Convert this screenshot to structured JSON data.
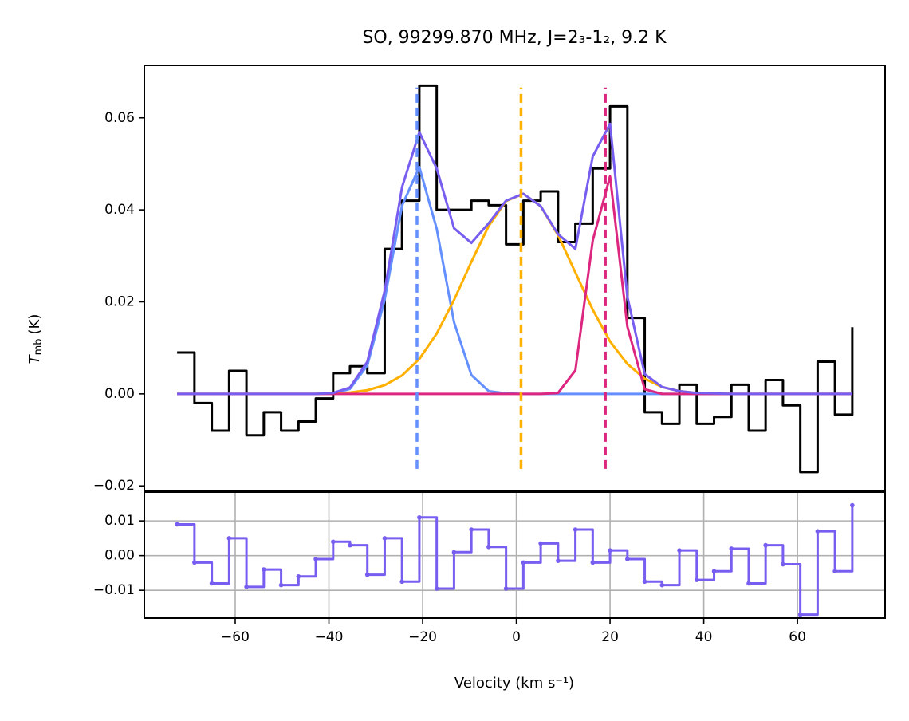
{
  "chart_data": [
    {
      "type": "line",
      "title": "SO, 99299.870 MHz, J=2₃-1₂, 9.2 K",
      "ylabel": {
        "symbol": "T",
        "subscript": "mb",
        "unit": "(K)"
      },
      "xlim": [
        -79.4,
        78.7
      ],
      "ylim": [
        -0.021,
        0.0714
      ],
      "yticks": [
        {
          "value": -0.02,
          "label": "−0.02"
        },
        {
          "value": 0,
          "label": "0.00"
        },
        {
          "value": 0.02,
          "label": "0.02"
        },
        {
          "value": 0.04,
          "label": "0.04"
        },
        {
          "value": 0.06,
          "label": "0.06"
        }
      ],
      "grid": false,
      "x": [
        -72.4,
        -68.7,
        -65.0,
        -61.3,
        -57.6,
        -53.9,
        -50.2,
        -46.5,
        -42.8,
        -39.1,
        -35.5,
        -31.8,
        -28.1,
        -24.4,
        -20.7,
        -17.0,
        -13.3,
        -9.6,
        -5.9,
        -2.2,
        1.5,
        5.2,
        8.9,
        12.6,
        16.3,
        20.0,
        23.7,
        27.4,
        31.1,
        34.8,
        38.5,
        42.2,
        45.9,
        49.6,
        53.2,
        56.9,
        60.6,
        64.3,
        68.0,
        71.7
      ],
      "series": [
        {
          "color": "#000000",
          "drawstyle": "steps-post",
          "values": [
            0.009,
            -0.002,
            -0.008,
            0.005,
            -0.009,
            -0.004,
            -0.008,
            -0.006,
            -0.001,
            0.0045,
            0.006,
            0.0045,
            0.0315,
            0.042,
            0.067,
            0.04,
            0.04,
            0.042,
            0.041,
            0.0325,
            0.042,
            0.044,
            0.033,
            0.037,
            0.049,
            0.0625,
            0.0165,
            -0.004,
            -0.0065,
            0.002,
            -0.0065,
            -0.005,
            0.002,
            -0.008,
            0.003,
            -0.0025,
            -0.017,
            0.007,
            -0.0045,
            0.0145
          ]
        },
        {
          "color": "#648fff",
          "drawstyle": "default",
          "values": [
            0,
            0,
            0,
            0,
            0,
            0,
            0,
            0,
            0,
            0.0001,
            0.0011,
            0.0062,
            0.0205,
            0.0409,
            0.0493,
            0.0359,
            0.0156,
            0.0041,
            0.0006,
            0.0001,
            0,
            0,
            0,
            0,
            0,
            0,
            0,
            0,
            0,
            0,
            0,
            0,
            0,
            0,
            0,
            0,
            0,
            0,
            0,
            0
          ]
        },
        {
          "color": "#ffb000",
          "drawstyle": "default",
          "values": [
            0,
            0,
            0,
            0,
            0,
            0,
            0,
            0,
            0,
            0.0001,
            0.0003,
            0.0008,
            0.0019,
            0.004,
            0.0076,
            0.0131,
            0.0204,
            0.0287,
            0.0365,
            0.0419,
            0.0435,
            0.0408,
            0.0345,
            0.0264,
            0.0183,
            0.0114,
            0.0065,
            0.0033,
            0.0015,
            0.0006,
            0.0002,
            0.0001,
            0,
            0,
            0,
            0,
            0,
            0,
            0,
            0
          ]
        },
        {
          "color": "#dc267f",
          "drawstyle": "default",
          "values": [
            0,
            0,
            0,
            0,
            0,
            0,
            0,
            0,
            0,
            0,
            0,
            0,
            0,
            0,
            0,
            0,
            0,
            0,
            0,
            0,
            0,
            0,
            0.0002,
            0.0051,
            0.0333,
            0.0473,
            0.0146,
            0.001,
            0,
            0,
            0,
            0,
            0,
            0,
            0,
            0,
            0,
            0,
            0,
            0
          ]
        },
        {
          "color": "#785ef0",
          "drawstyle": "default",
          "values": [
            0,
            0,
            0,
            0,
            0,
            0,
            0,
            0,
            0,
            0.0002,
            0.0014,
            0.007,
            0.0224,
            0.0449,
            0.0569,
            0.049,
            0.036,
            0.0328,
            0.0371,
            0.042,
            0.0435,
            0.0408,
            0.0347,
            0.0315,
            0.0516,
            0.0587,
            0.0211,
            0.0043,
            0.0015,
            0.0006,
            0.0002,
            0.0001,
            0,
            0,
            0,
            0,
            0,
            0,
            0,
            0
          ]
        }
      ],
      "vlines": [
        {
          "x": -21.2,
          "color": "#648fff"
        },
        {
          "x": 1.0,
          "color": "#ffb000"
        },
        {
          "x": 19.0,
          "color": "#dc267f"
        }
      ],
      "vline_range": [
        -0.0163,
        0.0666
      ]
    },
    {
      "type": "line",
      "xlabel": "Velocity (km s⁻¹)",
      "xlim": [
        -79.4,
        78.7
      ],
      "ylim": [
        -0.018,
        0.0183
      ],
      "xticks": [
        {
          "value": -60,
          "label": "−60"
        },
        {
          "value": -40,
          "label": "−40"
        },
        {
          "value": -20,
          "label": "−20"
        },
        0,
        20,
        40,
        60
      ],
      "yticks": [
        {
          "value": -0.01,
          "label": "−0.01"
        },
        {
          "value": 0,
          "label": "0.00"
        },
        {
          "value": 0.01,
          "label": "0.01"
        }
      ],
      "grid": true,
      "x": [
        -72.4,
        -68.7,
        -65.0,
        -61.3,
        -57.6,
        -53.9,
        -50.2,
        -46.5,
        -42.8,
        -39.1,
        -35.5,
        -31.8,
        -28.1,
        -24.4,
        -20.7,
        -17.0,
        -13.3,
        -9.6,
        -5.9,
        -2.2,
        1.5,
        5.2,
        8.9,
        12.6,
        16.3,
        20.0,
        23.7,
        27.4,
        31.1,
        34.8,
        38.5,
        42.2,
        45.9,
        49.6,
        53.2,
        56.9,
        60.6,
        64.3,
        68.0,
        71.7
      ],
      "series": [
        {
          "color": "#785ef0",
          "drawstyle": "steps-post",
          "markers": true,
          "values": [
            0.009,
            -0.002,
            -0.008,
            0.005,
            -0.009,
            -0.004,
            -0.0085,
            -0.006,
            -0.001,
            0.004,
            0.003,
            -0.0055,
            0.005,
            -0.0075,
            0.011,
            -0.0095,
            0.001,
            0.0075,
            0.0025,
            -0.0095,
            -0.002,
            0.0035,
            -0.0015,
            0.0075,
            -0.002,
            0.0015,
            -0.001,
            -0.0075,
            -0.0085,
            0.0015,
            -0.007,
            -0.0045,
            0.002,
            -0.008,
            0.003,
            -0.0025,
            -0.017,
            0.007,
            -0.0045,
            0.0145
          ]
        }
      ]
    }
  ]
}
